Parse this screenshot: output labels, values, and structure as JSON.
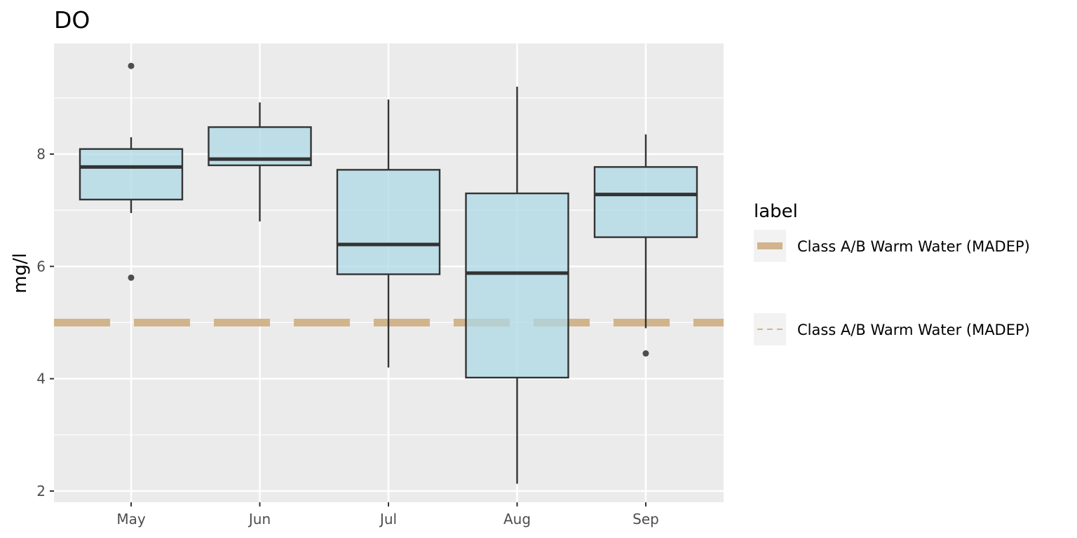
{
  "chart_data": {
    "type": "box",
    "title": "DO",
    "xlabel": "",
    "ylabel": "mg/l",
    "categories": [
      "May",
      "Jun",
      "Jul",
      "Aug",
      "Sep"
    ],
    "yticks": [
      2,
      4,
      6,
      8
    ],
    "ylim": [
      1.8,
      9.97
    ],
    "grid": true,
    "boxes": [
      {
        "category": "May",
        "whisker_low": 6.95,
        "q1": 7.19,
        "median": 7.77,
        "q3": 8.09,
        "whisker_high": 8.3,
        "outliers": [
          9.57,
          5.8
        ]
      },
      {
        "category": "Jun",
        "whisker_low": 6.8,
        "q1": 7.8,
        "median": 7.91,
        "q3": 8.48,
        "whisker_high": 8.92,
        "outliers": []
      },
      {
        "category": "Jul",
        "whisker_low": 4.2,
        "q1": 5.86,
        "median": 6.39,
        "q3": 7.72,
        "whisker_high": 8.97,
        "outliers": []
      },
      {
        "category": "Aug",
        "whisker_low": 2.13,
        "q1": 4.02,
        "median": 5.88,
        "q3": 7.3,
        "whisker_high": 9.2,
        "outliers": []
      },
      {
        "category": "Sep",
        "whisker_low": 4.9,
        "q1": 6.52,
        "median": 7.28,
        "q3": 7.77,
        "whisker_high": 8.35,
        "outliers": [
          4.45
        ]
      }
    ],
    "reference_lines": [
      {
        "name": "Class A/B Warm Water (MADEP)",
        "y": 5.0,
        "style": "dashed",
        "color": "#d2b48c"
      }
    ],
    "legend": {
      "title": "label",
      "position": "right",
      "entries": [
        {
          "label": "Class A/B Warm Water (MADEP)",
          "style": "thick"
        },
        {
          "label": "Class A/B Warm Water (MADEP)",
          "style": "dashed"
        }
      ]
    }
  },
  "colors": {
    "panel_bg": "#ebebeb",
    "grid": "#ffffff",
    "box_fill": "#add8e6",
    "box_stroke": "#333333",
    "outlier": "#4d4d4d",
    "reference_line": "#d2b48c"
  }
}
